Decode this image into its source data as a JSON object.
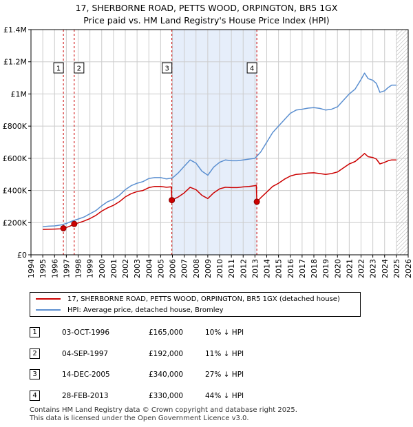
{
  "title_line1": "17, SHERBORNE ROAD, PETTS WOOD, ORPINGTON, BR5 1GX",
  "title_line2": "Price paid vs. HM Land Registry's House Price Index (HPI)",
  "colors": {
    "property": "#cc0000",
    "hpi": "#5b8fd0",
    "shade": "#e6eefa",
    "grid": "#cccccc",
    "sale_line": "#cc0000",
    "hatch": "#aaaaaa"
  },
  "legend": {
    "property": "17, SHERBORNE ROAD, PETTS WOOD, ORPINGTON, BR5 1GX (detached house)",
    "hpi": "HPI: Average price, detached house, Bromley"
  },
  "sales": [
    {
      "num": "1",
      "date": "03-OCT-1996",
      "price": "£165,000",
      "hpi": "10% ↓ HPI"
    },
    {
      "num": "2",
      "date": "04-SEP-1997",
      "price": "£192,000",
      "hpi": "11% ↓ HPI"
    },
    {
      "num": "3",
      "date": "14-DEC-2005",
      "price": "£340,000",
      "hpi": "27% ↓ HPI"
    },
    {
      "num": "4",
      "date": "28-FEB-2013",
      "price": "£330,000",
      "hpi": "44% ↓ HPI"
    }
  ],
  "footer_line1": "Contains HM Land Registry data © Crown copyright and database right 2025.",
  "footer_line2": "This data is licensed under the Open Government Licence v3.0.",
  "chart_data": {
    "type": "line",
    "title": "17, SHERBORNE ROAD, PETTS WOOD, ORPINGTON, BR5 1GX — Price paid vs. HM Land Registry's House Price Index (HPI)",
    "xlabel": "",
    "ylabel": "",
    "xlim": [
      1994,
      2026
    ],
    "ylim": [
      0,
      1400000
    ],
    "yticks": [
      0,
      200000,
      400000,
      600000,
      800000,
      1000000,
      1200000,
      1400000
    ],
    "ytick_labels": [
      "£0",
      "£200K",
      "£400K",
      "£600K",
      "£800K",
      "£1M",
      "£1.2M",
      "£1.4M"
    ],
    "xticks": [
      1994,
      1995,
      1996,
      1997,
      1998,
      1999,
      2000,
      2001,
      2002,
      2003,
      2004,
      2005,
      2006,
      2007,
      2008,
      2009,
      2010,
      2011,
      2012,
      2013,
      2014,
      2015,
      2016,
      2017,
      2018,
      2019,
      2020,
      2021,
      2022,
      2023,
      2024,
      2025,
      2026
    ],
    "xtick_labels": [
      "1994",
      "1995",
      "1996",
      "1997",
      "1998",
      "1999",
      "2000",
      "2001",
      "2002",
      "2003",
      "2004",
      "2005",
      "2006",
      "2007",
      "2008",
      "2009",
      "2010",
      "2011",
      "2012",
      "2013",
      "2014",
      "2015",
      "2016",
      "2017",
      "2018",
      "2019",
      "2020",
      "2021",
      "2022",
      "2023",
      "2024",
      "2025",
      "2026"
    ],
    "shaded_span": [
      2005.95,
      2013.16
    ],
    "hatched_from": 2025.0,
    "sale_markers": [
      {
        "label": "1",
        "x": 1996.75,
        "y": 165000
      },
      {
        "label": "2",
        "x": 1997.67,
        "y": 192000
      },
      {
        "label": "3",
        "x": 2005.95,
        "y": 340000
      },
      {
        "label": "4",
        "x": 2013.16,
        "y": 330000
      }
    ],
    "series": [
      {
        "name": "HPI: Average price, detached house, Bromley",
        "x": [
          1995.0,
          1995.5,
          1996.0,
          1996.5,
          1997.0,
          1997.5,
          1998.0,
          1998.5,
          1999.0,
          1999.5,
          2000.0,
          2000.5,
          2001.0,
          2001.5,
          2002.0,
          2002.5,
          2003.0,
          2003.5,
          2004.0,
          2004.5,
          2005.0,
          2005.5,
          2006.0,
          2006.5,
          2007.0,
          2007.5,
          2008.0,
          2008.5,
          2009.0,
          2009.5,
          2010.0,
          2010.5,
          2011.0,
          2011.5,
          2012.0,
          2012.5,
          2013.0,
          2013.5,
          2014.0,
          2014.5,
          2015.0,
          2015.5,
          2016.0,
          2016.5,
          2017.0,
          2017.5,
          2018.0,
          2018.5,
          2019.0,
          2019.5,
          2020.0,
          2020.5,
          2021.0,
          2021.5,
          2022.0,
          2022.3,
          2022.6,
          2023.0,
          2023.3,
          2023.6,
          2024.0,
          2024.3,
          2024.6,
          2025.0
        ],
        "values": [
          175000,
          178000,
          180000,
          185000,
          195000,
          210000,
          222000,
          235000,
          255000,
          275000,
          305000,
          330000,
          345000,
          370000,
          405000,
          430000,
          445000,
          455000,
          475000,
          480000,
          480000,
          472000,
          478000,
          510000,
          550000,
          590000,
          570000,
          520000,
          495000,
          545000,
          575000,
          590000,
          585000,
          585000,
          590000,
          595000,
          600000,
          640000,
          700000,
          760000,
          800000,
          840000,
          880000,
          900000,
          905000,
          912000,
          915000,
          910000,
          900000,
          905000,
          920000,
          960000,
          1000000,
          1030000,
          1090000,
          1130000,
          1095000,
          1085000,
          1065000,
          1010000,
          1020000,
          1040000,
          1055000,
          1055000
        ]
      },
      {
        "name": "17, SHERBORNE ROAD, PETTS WOOD, ORPINGTON, BR5 1GX (detached house)",
        "x": [
          1995.0,
          1995.5,
          1996.0,
          1996.5,
          1996.75,
          1997.0,
          1997.3,
          1997.67,
          1998.0,
          1998.5,
          1999.0,
          1999.5,
          2000.0,
          2000.5,
          2001.0,
          2001.5,
          2002.0,
          2002.5,
          2003.0,
          2003.5,
          2004.0,
          2004.5,
          2005.0,
          2005.5,
          2005.9,
          2005.95,
          2006.5,
          2007.0,
          2007.5,
          2008.0,
          2008.5,
          2009.0,
          2009.5,
          2010.0,
          2010.5,
          2011.0,
          2011.5,
          2012.0,
          2012.5,
          2013.0,
          2013.12,
          2013.16,
          2013.5,
          2014.0,
          2014.5,
          2015.0,
          2015.5,
          2016.0,
          2016.5,
          2017.0,
          2017.5,
          2018.0,
          2018.5,
          2019.0,
          2019.5,
          2020.0,
          2020.5,
          2021.0,
          2021.5,
          2022.0,
          2022.3,
          2022.6,
          2023.0,
          2023.3,
          2023.6,
          2024.0,
          2024.3,
          2024.6,
          2025.0
        ],
        "values": [
          158000,
          159000,
          160000,
          162000,
          165000,
          170000,
          178000,
          192000,
          198000,
          210000,
          225000,
          245000,
          272000,
          292000,
          308000,
          330000,
          360000,
          380000,
          393000,
          400000,
          418000,
          425000,
          425000,
          420000,
          423000,
          340000,
          360000,
          385000,
          420000,
          405000,
          370000,
          350000,
          385000,
          410000,
          420000,
          418000,
          418000,
          422000,
          425000,
          430000,
          432000,
          330000,
          355000,
          390000,
          425000,
          445000,
          470000,
          490000,
          500000,
          503000,
          508000,
          510000,
          505000,
          500000,
          505000,
          515000,
          540000,
          565000,
          580000,
          610000,
          630000,
          610000,
          605000,
          595000,
          565000,
          575000,
          585000,
          590000,
          590000
        ]
      }
    ]
  }
}
